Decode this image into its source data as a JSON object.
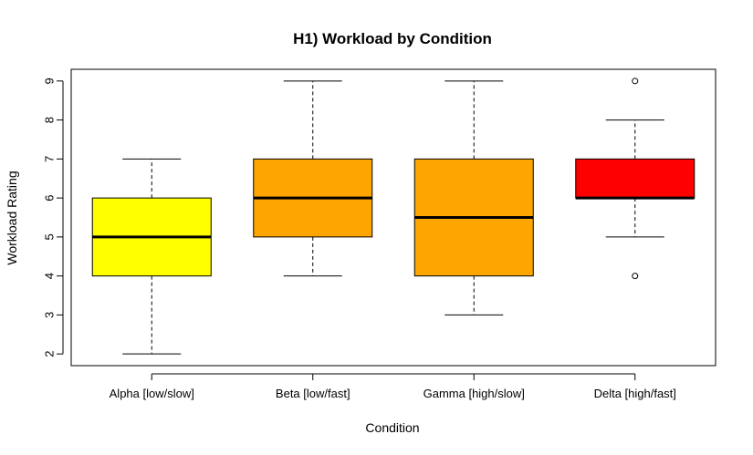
{
  "chart_data": {
    "type": "boxplot",
    "title": "H1) Workload by Condition",
    "xlabel": "Condition",
    "ylabel": "Workload Rating",
    "ylim": [
      1.7,
      9.3
    ],
    "yticks": [
      2,
      3,
      4,
      5,
      6,
      7,
      8,
      9
    ],
    "categories": [
      "Alpha [low/slow]",
      "Beta [low/fast]",
      "Gamma [high/slow]",
      "Delta [high/fast]"
    ],
    "boxes": [
      {
        "category": "Alpha [low/slow]",
        "whisker_low": 2,
        "q1": 4,
        "median": 5,
        "q3": 6,
        "whisker_high": 7,
        "outliers": [],
        "color": "#ffff00"
      },
      {
        "category": "Beta [low/fast]",
        "whisker_low": 4,
        "q1": 5,
        "median": 6,
        "q3": 7,
        "whisker_high": 9,
        "outliers": [],
        "color": "#ffa500"
      },
      {
        "category": "Gamma [high/slow]",
        "whisker_low": 3,
        "q1": 4,
        "median": 5.5,
        "q3": 7,
        "whisker_high": 9,
        "outliers": [],
        "color": "#ffa500"
      },
      {
        "category": "Delta [high/fast]",
        "whisker_low": 5,
        "q1": 6,
        "median": 6,
        "q3": 7,
        "whisker_high": 8,
        "outliers": [
          9,
          4
        ],
        "color": "#ff0000"
      }
    ],
    "grid": false,
    "legend": "none"
  }
}
